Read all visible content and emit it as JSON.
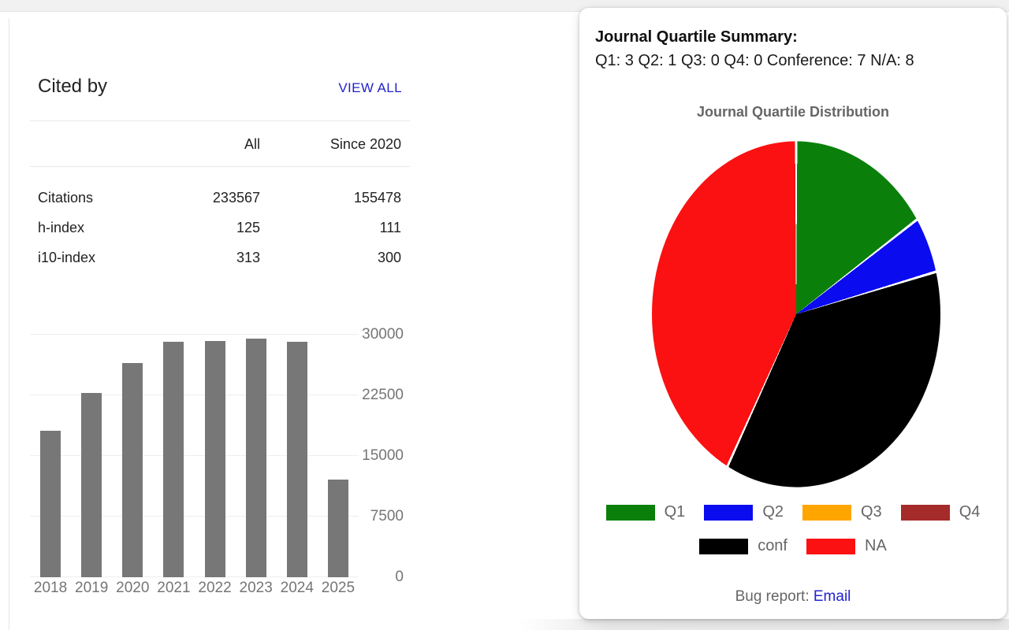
{
  "scholar": {
    "cited_by": {
      "title": "Cited by",
      "view_all_label": "VIEW ALL",
      "columns": {
        "all": "All",
        "since": "Since 2020"
      },
      "rows": [
        {
          "label": "Citations",
          "all": "233567",
          "since": "155478"
        },
        {
          "label": "h-index",
          "all": "125",
          "since": "111"
        },
        {
          "label": "i10-index",
          "all": "313",
          "since": "300"
        }
      ]
    }
  },
  "extension": {
    "summary_heading": "Journal Quartile Summary:",
    "summary_line": "Q1: 3 Q2: 1 Q3: 0 Q4: 0 Conference: 7 N/A: 8",
    "bug_report": {
      "label": "Bug report:",
      "link_label": "Email"
    }
  },
  "colors": {
    "link_blue": "#2222cc",
    "bar_gray": "#777777",
    "text_dark": "#222222",
    "text_gray": "#757575",
    "legend_gray": "#666666"
  },
  "chart_data": [
    {
      "type": "bar",
      "title": "",
      "categories": [
        "2018",
        "2019",
        "2020",
        "2021",
        "2022",
        "2023",
        "2024",
        "2025"
      ],
      "values": [
        18100,
        22800,
        26500,
        29100,
        29200,
        29500,
        29100,
        12100
      ],
      "y_ticks": [
        0,
        7500,
        15000,
        22500,
        30000
      ],
      "ylim": [
        0,
        30000
      ],
      "bar_color": "#777777",
      "grid": "horizontal",
      "tick_side": "right",
      "xlabel": "",
      "ylabel": ""
    },
    {
      "type": "pie",
      "title": "Journal Quartile Distribution",
      "labels": [
        "Q1",
        "Q2",
        "Q3",
        "Q4",
        "conf",
        "NA"
      ],
      "values": [
        3,
        1,
        0,
        0,
        7,
        8
      ],
      "colors": [
        "#0a800a",
        "#0b0bf0",
        "#ffa500",
        "#a52a2a",
        "#000000",
        "#fb1111"
      ],
      "slice_border_color": "#ffffff",
      "start_angle_deg": 0,
      "direction": "clockwise",
      "legend_position": "bottom",
      "legend_rows": [
        [
          0,
          1,
          2,
          3
        ],
        [
          4,
          5
        ]
      ]
    }
  ]
}
